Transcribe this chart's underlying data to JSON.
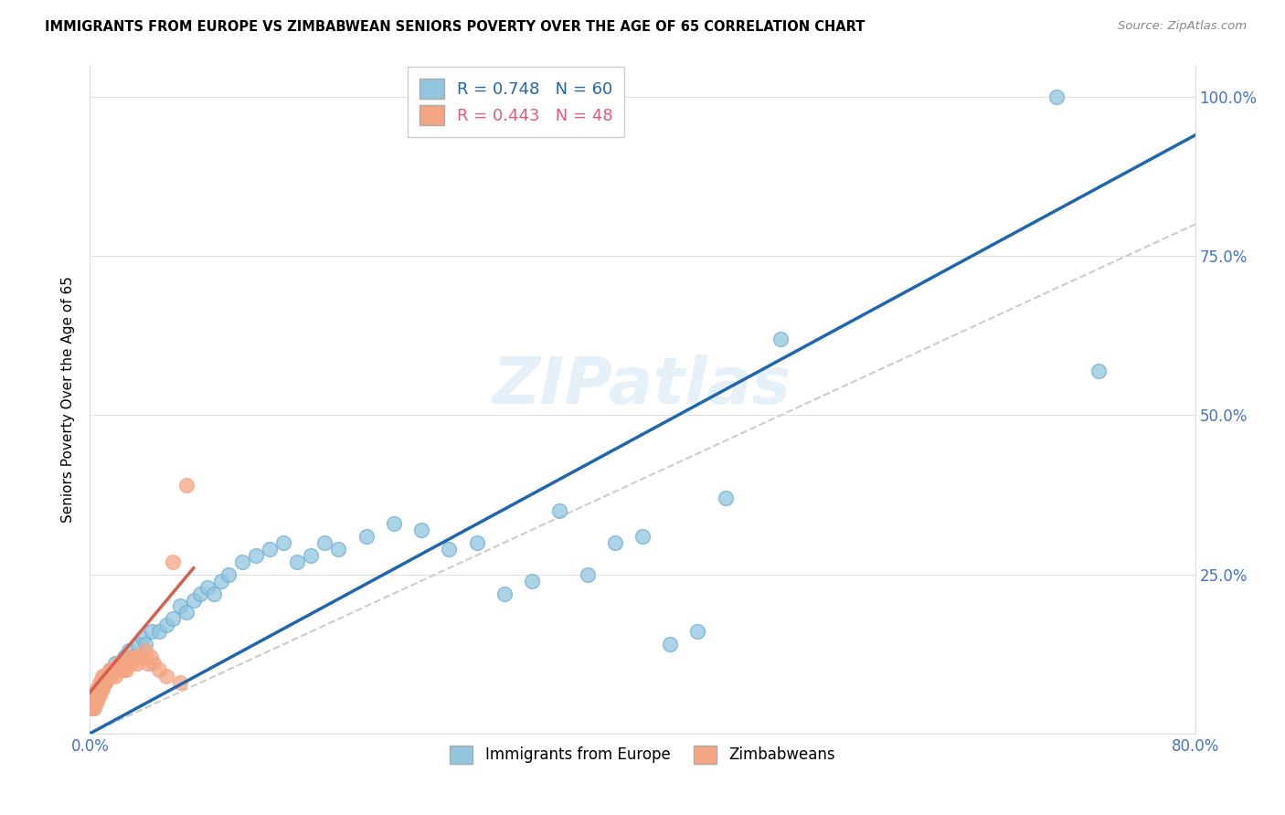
{
  "title": "IMMIGRANTS FROM EUROPE VS ZIMBABWEAN SENIORS POVERTY OVER THE AGE OF 65 CORRELATION CHART",
  "source": "Source: ZipAtlas.com",
  "ylabel": "Seniors Poverty Over the Age of 65",
  "xlim": [
    0.0,
    0.8
  ],
  "ylim": [
    0.0,
    1.05
  ],
  "xticks": [
    0.0,
    0.2,
    0.4,
    0.6,
    0.8
  ],
  "xticklabels": [
    "0.0%",
    "",
    "",
    "",
    "80.0%"
  ],
  "yticks_right": [
    0.0,
    0.25,
    0.5,
    0.75,
    1.0
  ],
  "yticklabels_right": [
    "",
    "25.0%",
    "50.0%",
    "75.0%",
    "100.0%"
  ],
  "blue_color": "#92c5de",
  "blue_edge_color": "#6baed6",
  "blue_line_color": "#2166ac",
  "pink_color": "#f4a582",
  "pink_edge_color": "#f4a582",
  "pink_line_color": "#d6604d",
  "diagonal_color": "#cccccc",
  "axis_label_color": "#4472c4",
  "R_blue": 0.748,
  "N_blue": 60,
  "R_pink": 0.443,
  "N_pink": 48,
  "watermark": "ZIPatlas",
  "legend_label_blue": "Immigrants from Europe",
  "legend_label_pink": "Zimbabweans",
  "blue_line_x0": 0.0,
  "blue_line_y0": 0.0,
  "blue_line_x1": 0.8,
  "blue_line_y1": 0.94,
  "pink_line_x0": 0.0,
  "pink_line_y0": 0.065,
  "pink_line_x1": 0.075,
  "pink_line_y1": 0.26,
  "blue_x": [
    0.002,
    0.003,
    0.004,
    0.005,
    0.006,
    0.007,
    0.008,
    0.009,
    0.01,
    0.011,
    0.012,
    0.013,
    0.015,
    0.016,
    0.018,
    0.02,
    0.022,
    0.025,
    0.028,
    0.03,
    0.035,
    0.038,
    0.04,
    0.045,
    0.05,
    0.055,
    0.06,
    0.065,
    0.07,
    0.075,
    0.08,
    0.085,
    0.09,
    0.095,
    0.1,
    0.11,
    0.12,
    0.13,
    0.14,
    0.15,
    0.16,
    0.17,
    0.18,
    0.2,
    0.22,
    0.24,
    0.26,
    0.28,
    0.3,
    0.32,
    0.34,
    0.36,
    0.38,
    0.4,
    0.42,
    0.44,
    0.46,
    0.5,
    0.7,
    0.73
  ],
  "blue_y": [
    0.04,
    0.05,
    0.05,
    0.06,
    0.06,
    0.07,
    0.07,
    0.08,
    0.08,
    0.08,
    0.09,
    0.09,
    0.1,
    0.1,
    0.11,
    0.1,
    0.11,
    0.12,
    0.13,
    0.12,
    0.14,
    0.15,
    0.14,
    0.16,
    0.16,
    0.17,
    0.18,
    0.2,
    0.19,
    0.21,
    0.22,
    0.23,
    0.22,
    0.24,
    0.25,
    0.27,
    0.28,
    0.29,
    0.3,
    0.27,
    0.28,
    0.3,
    0.29,
    0.31,
    0.33,
    0.32,
    0.29,
    0.3,
    0.22,
    0.24,
    0.35,
    0.25,
    0.3,
    0.31,
    0.14,
    0.16,
    0.37,
    0.62,
    1.0,
    0.57
  ],
  "pink_x": [
    0.002,
    0.003,
    0.004,
    0.004,
    0.005,
    0.005,
    0.006,
    0.006,
    0.007,
    0.007,
    0.008,
    0.008,
    0.009,
    0.009,
    0.01,
    0.01,
    0.011,
    0.012,
    0.013,
    0.014,
    0.015,
    0.016,
    0.017,
    0.018,
    0.019,
    0.02,
    0.021,
    0.022,
    0.023,
    0.024,
    0.025,
    0.026,
    0.027,
    0.028,
    0.03,
    0.032,
    0.034,
    0.036,
    0.038,
    0.04,
    0.042,
    0.044,
    0.046,
    0.05,
    0.055,
    0.06,
    0.065,
    0.07
  ],
  "pink_y": [
    0.04,
    0.04,
    0.05,
    0.06,
    0.05,
    0.07,
    0.06,
    0.07,
    0.06,
    0.08,
    0.07,
    0.08,
    0.07,
    0.09,
    0.08,
    0.09,
    0.08,
    0.09,
    0.09,
    0.1,
    0.09,
    0.1,
    0.1,
    0.09,
    0.1,
    0.1,
    0.11,
    0.1,
    0.11,
    0.1,
    0.11,
    0.1,
    0.11,
    0.12,
    0.11,
    0.12,
    0.11,
    0.12,
    0.12,
    0.13,
    0.11,
    0.12,
    0.11,
    0.1,
    0.09,
    0.27,
    0.08,
    0.39
  ]
}
